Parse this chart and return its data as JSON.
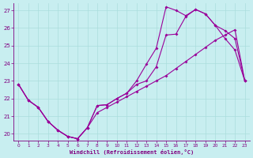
{
  "xlabel": "Windchill (Refroidissement éolien,°C)",
  "background_color": "#c8eef0",
  "line_color": "#990099",
  "xlim": [
    -0.5,
    23.5
  ],
  "ylim": [
    19.6,
    27.4
  ],
  "xticks": [
    0,
    1,
    2,
    3,
    4,
    5,
    6,
    7,
    8,
    9,
    10,
    11,
    12,
    13,
    14,
    15,
    16,
    17,
    18,
    19,
    20,
    21,
    22,
    23
  ],
  "yticks": [
    20,
    21,
    22,
    23,
    24,
    25,
    26,
    27
  ],
  "line1_x": [
    0,
    1,
    2,
    3,
    4,
    5,
    6,
    7,
    8,
    9,
    10,
    11,
    12,
    13,
    14,
    15,
    16,
    17,
    18,
    19,
    20,
    21,
    22,
    23
  ],
  "line1_y": [
    22.8,
    21.9,
    21.5,
    20.7,
    20.2,
    19.85,
    19.72,
    20.35,
    21.6,
    21.65,
    22.0,
    22.3,
    23.0,
    23.95,
    24.85,
    27.2,
    27.0,
    26.7,
    27.05,
    26.8,
    26.15,
    25.4,
    24.75,
    23.0
  ],
  "line2_x": [
    0,
    1,
    2,
    3,
    4,
    5,
    6,
    7,
    8,
    9,
    10,
    11,
    12,
    13,
    14,
    15,
    16,
    17,
    18,
    19,
    20,
    21,
    22,
    23
  ],
  "line2_y": [
    22.8,
    21.9,
    21.5,
    20.7,
    20.2,
    19.85,
    19.72,
    20.35,
    21.6,
    21.65,
    22.0,
    22.3,
    22.8,
    23.0,
    23.8,
    25.6,
    25.65,
    26.65,
    27.05,
    26.8,
    26.15,
    25.85,
    25.4,
    23.0
  ],
  "line3_x": [
    0,
    1,
    2,
    3,
    4,
    5,
    6,
    7,
    8,
    9,
    10,
    11,
    12,
    13,
    14,
    15,
    16,
    17,
    18,
    19,
    20,
    21,
    22,
    23
  ],
  "line3_y": [
    22.8,
    21.9,
    21.5,
    20.7,
    20.2,
    19.85,
    19.72,
    20.35,
    21.2,
    21.5,
    21.8,
    22.1,
    22.4,
    22.7,
    23.0,
    23.3,
    23.7,
    24.1,
    24.5,
    24.9,
    25.3,
    25.6,
    25.9,
    23.0
  ],
  "font_color": "#800080",
  "grid_color": "#aadddd",
  "markersize": 2.0
}
